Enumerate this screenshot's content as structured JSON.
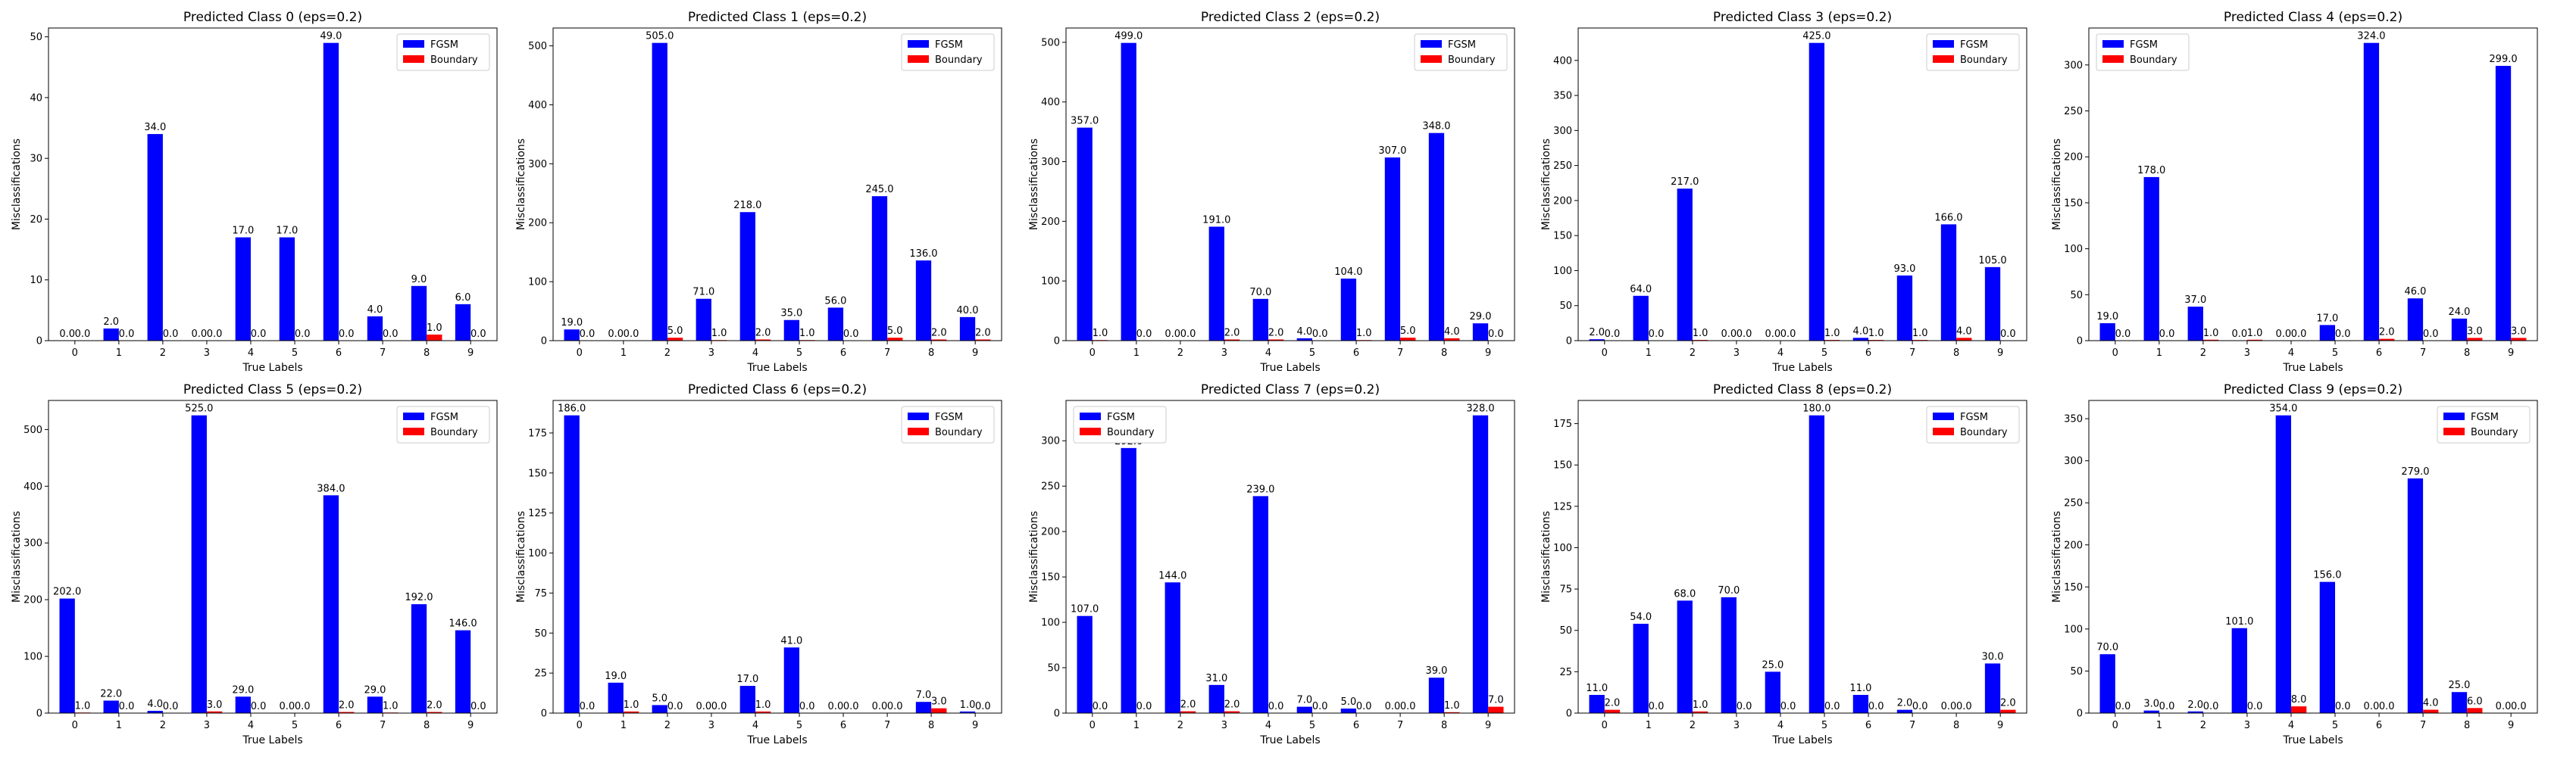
{
  "chart_data": [
    {
      "type": "bar",
      "title": "Predicted Class 0 (eps=0.2)",
      "xlabel": "True Labels",
      "ylabel": "Misclassifications",
      "categories": [
        "0",
        "1",
        "2",
        "3",
        "4",
        "5",
        "6",
        "7",
        "8",
        "9"
      ],
      "series": [
        {
          "name": "FGSM",
          "color": "#0000ff",
          "values": [
            0.0,
            2.0,
            34.0,
            0.0,
            17.0,
            17.0,
            49.0,
            4.0,
            9.0,
            6.0
          ]
        },
        {
          "name": "Boundary",
          "color": "#ff0000",
          "values": [
            0.0,
            0.0,
            0.0,
            0.0,
            0.0,
            0.0,
            0.0,
            0.0,
            1.0,
            0.0
          ]
        }
      ],
      "ylim": [
        0,
        51.45
      ],
      "yticks": [
        0,
        10,
        20,
        30,
        40,
        50
      ],
      "legend": "top-right",
      "grid": false
    },
    {
      "type": "bar",
      "title": "Predicted Class 1 (eps=0.2)",
      "xlabel": "True Labels",
      "ylabel": "Misclassifications",
      "categories": [
        "0",
        "1",
        "2",
        "3",
        "4",
        "5",
        "6",
        "7",
        "8",
        "9"
      ],
      "series": [
        {
          "name": "FGSM",
          "color": "#0000ff",
          "values": [
            19.0,
            0.0,
            505.0,
            71.0,
            218.0,
            35.0,
            56.0,
            245.0,
            136.0,
            40.0
          ]
        },
        {
          "name": "Boundary",
          "color": "#ff0000",
          "values": [
            0.0,
            0.0,
            5.0,
            1.0,
            2.0,
            1.0,
            0.0,
            5.0,
            2.0,
            2.0
          ]
        }
      ],
      "ylim": [
        0,
        530.25
      ],
      "yticks": [
        0,
        100,
        200,
        300,
        400,
        500
      ],
      "legend": "top-right",
      "grid": false
    },
    {
      "type": "bar",
      "title": "Predicted Class 2 (eps=0.2)",
      "xlabel": "True Labels",
      "ylabel": "Misclassifications",
      "categories": [
        "0",
        "1",
        "2",
        "3",
        "4",
        "5",
        "6",
        "7",
        "8",
        "9"
      ],
      "series": [
        {
          "name": "FGSM",
          "color": "#0000ff",
          "values": [
            357.0,
            499.0,
            0.0,
            191.0,
            70.0,
            4.0,
            104.0,
            307.0,
            348.0,
            29.0
          ]
        },
        {
          "name": "Boundary",
          "color": "#ff0000",
          "values": [
            1.0,
            0.0,
            0.0,
            2.0,
            2.0,
            0.0,
            1.0,
            5.0,
            4.0,
            0.0
          ]
        }
      ],
      "ylim": [
        0,
        523.95
      ],
      "yticks": [
        0,
        100,
        200,
        300,
        400,
        500
      ],
      "legend": "top-right",
      "grid": false
    },
    {
      "type": "bar",
      "title": "Predicted Class 3 (eps=0.2)",
      "xlabel": "True Labels",
      "ylabel": "Misclassifications",
      "categories": [
        "0",
        "1",
        "2",
        "3",
        "4",
        "5",
        "6",
        "7",
        "8",
        "9"
      ],
      "series": [
        {
          "name": "FGSM",
          "color": "#0000ff",
          "values": [
            2.0,
            64.0,
            217.0,
            0.0,
            0.0,
            425.0,
            4.0,
            93.0,
            166.0,
            105.0
          ]
        },
        {
          "name": "Boundary",
          "color": "#ff0000",
          "values": [
            0.0,
            0.0,
            1.0,
            0.0,
            0.0,
            1.0,
            1.0,
            1.0,
            4.0,
            0.0
          ]
        }
      ],
      "ylim": [
        0,
        446.25
      ],
      "yticks": [
        0,
        50,
        100,
        150,
        200,
        250,
        300,
        350,
        400
      ],
      "legend": "top-right",
      "grid": false
    },
    {
      "type": "bar",
      "title": "Predicted Class 4 (eps=0.2)",
      "xlabel": "True Labels",
      "ylabel": "Misclassifications",
      "categories": [
        "0",
        "1",
        "2",
        "3",
        "4",
        "5",
        "6",
        "7",
        "8",
        "9"
      ],
      "series": [
        {
          "name": "FGSM",
          "color": "#0000ff",
          "values": [
            19.0,
            178.0,
            37.0,
            0.0,
            0.0,
            17.0,
            324.0,
            46.0,
            24.0,
            299.0
          ]
        },
        {
          "name": "Boundary",
          "color": "#ff0000",
          "values": [
            0.0,
            0.0,
            1.0,
            1.0,
            0.0,
            0.0,
            2.0,
            0.0,
            3.0,
            3.0
          ]
        }
      ],
      "ylim": [
        0,
        340.2
      ],
      "yticks": [
        0,
        50,
        100,
        150,
        200,
        250,
        300
      ],
      "legend": "top-left",
      "grid": false
    },
    {
      "type": "bar",
      "title": "Predicted Class 5 (eps=0.2)",
      "xlabel": "True Labels",
      "ylabel": "Misclassifications",
      "categories": [
        "0",
        "1",
        "2",
        "3",
        "4",
        "5",
        "6",
        "7",
        "8",
        "9"
      ],
      "series": [
        {
          "name": "FGSM",
          "color": "#0000ff",
          "values": [
            202.0,
            22.0,
            4.0,
            525.0,
            29.0,
            0.0,
            384.0,
            29.0,
            192.0,
            146.0
          ]
        },
        {
          "name": "Boundary",
          "color": "#ff0000",
          "values": [
            1.0,
            0.0,
            0.0,
            3.0,
            0.0,
            0.0,
            2.0,
            1.0,
            2.0,
            0.0
          ]
        }
      ],
      "ylim": [
        0,
        551.25
      ],
      "yticks": [
        0,
        100,
        200,
        300,
        400,
        500
      ],
      "legend": "top-right",
      "grid": false
    },
    {
      "type": "bar",
      "title": "Predicted Class 6 (eps=0.2)",
      "xlabel": "True Labels",
      "ylabel": "Misclassifications",
      "categories": [
        "0",
        "1",
        "2",
        "3",
        "4",
        "5",
        "6",
        "7",
        "8",
        "9"
      ],
      "series": [
        {
          "name": "FGSM",
          "color": "#0000ff",
          "values": [
            186.0,
            19.0,
            5.0,
            0.0,
            17.0,
            41.0,
            0.0,
            0.0,
            7.0,
            1.0
          ]
        },
        {
          "name": "Boundary",
          "color": "#ff0000",
          "values": [
            0.0,
            1.0,
            0.0,
            0.0,
            1.0,
            0.0,
            0.0,
            0.0,
            3.0,
            0.0
          ]
        }
      ],
      "ylim": [
        0,
        195.3
      ],
      "yticks": [
        0,
        25,
        50,
        75,
        100,
        125,
        150,
        175
      ],
      "legend": "top-right",
      "grid": false
    },
    {
      "type": "bar",
      "title": "Predicted Class 7 (eps=0.2)",
      "xlabel": "True Labels",
      "ylabel": "Misclassifications",
      "categories": [
        "0",
        "1",
        "2",
        "3",
        "4",
        "5",
        "6",
        "7",
        "8",
        "9"
      ],
      "series": [
        {
          "name": "FGSM",
          "color": "#0000ff",
          "values": [
            107.0,
            292.0,
            144.0,
            31.0,
            239.0,
            7.0,
            5.0,
            0.0,
            39.0,
            328.0
          ]
        },
        {
          "name": "Boundary",
          "color": "#ff0000",
          "values": [
            0.0,
            0.0,
            2.0,
            2.0,
            0.0,
            0.0,
            0.0,
            0.0,
            1.0,
            7.0
          ]
        }
      ],
      "ylim": [
        0,
        344.4
      ],
      "yticks": [
        0,
        50,
        100,
        150,
        200,
        250,
        300
      ],
      "legend": "top-left",
      "grid": false
    },
    {
      "type": "bar",
      "title": "Predicted Class 8 (eps=0.2)",
      "xlabel": "True Labels",
      "ylabel": "Misclassifications",
      "categories": [
        "0",
        "1",
        "2",
        "3",
        "4",
        "5",
        "6",
        "7",
        "8",
        "9"
      ],
      "series": [
        {
          "name": "FGSM",
          "color": "#0000ff",
          "values": [
            11.0,
            54.0,
            68.0,
            70.0,
            25.0,
            180.0,
            11.0,
            2.0,
            0.0,
            30.0
          ]
        },
        {
          "name": "Boundary",
          "color": "#ff0000",
          "values": [
            2.0,
            0.0,
            1.0,
            0.0,
            0.0,
            0.0,
            0.0,
            0.0,
            0.0,
            2.0
          ]
        }
      ],
      "ylim": [
        0,
        189.0
      ],
      "yticks": [
        0,
        25,
        50,
        75,
        100,
        125,
        150,
        175
      ],
      "legend": "top-right",
      "grid": false
    },
    {
      "type": "bar",
      "title": "Predicted Class 9 (eps=0.2)",
      "xlabel": "True Labels",
      "ylabel": "Misclassifications",
      "categories": [
        "0",
        "1",
        "2",
        "3",
        "4",
        "5",
        "6",
        "7",
        "8",
        "9"
      ],
      "series": [
        {
          "name": "FGSM",
          "color": "#0000ff",
          "values": [
            70.0,
            3.0,
            2.0,
            101.0,
            354.0,
            156.0,
            0.0,
            279.0,
            25.0,
            0.0
          ]
        },
        {
          "name": "Boundary",
          "color": "#ff0000",
          "values": [
            0.0,
            0.0,
            0.0,
            0.0,
            8.0,
            0.0,
            0.0,
            4.0,
            6.0,
            0.0
          ]
        }
      ],
      "ylim": [
        0,
        371.7
      ],
      "yticks": [
        0,
        50,
        100,
        150,
        200,
        250,
        300,
        350
      ],
      "legend": "top-right",
      "grid": false
    }
  ]
}
